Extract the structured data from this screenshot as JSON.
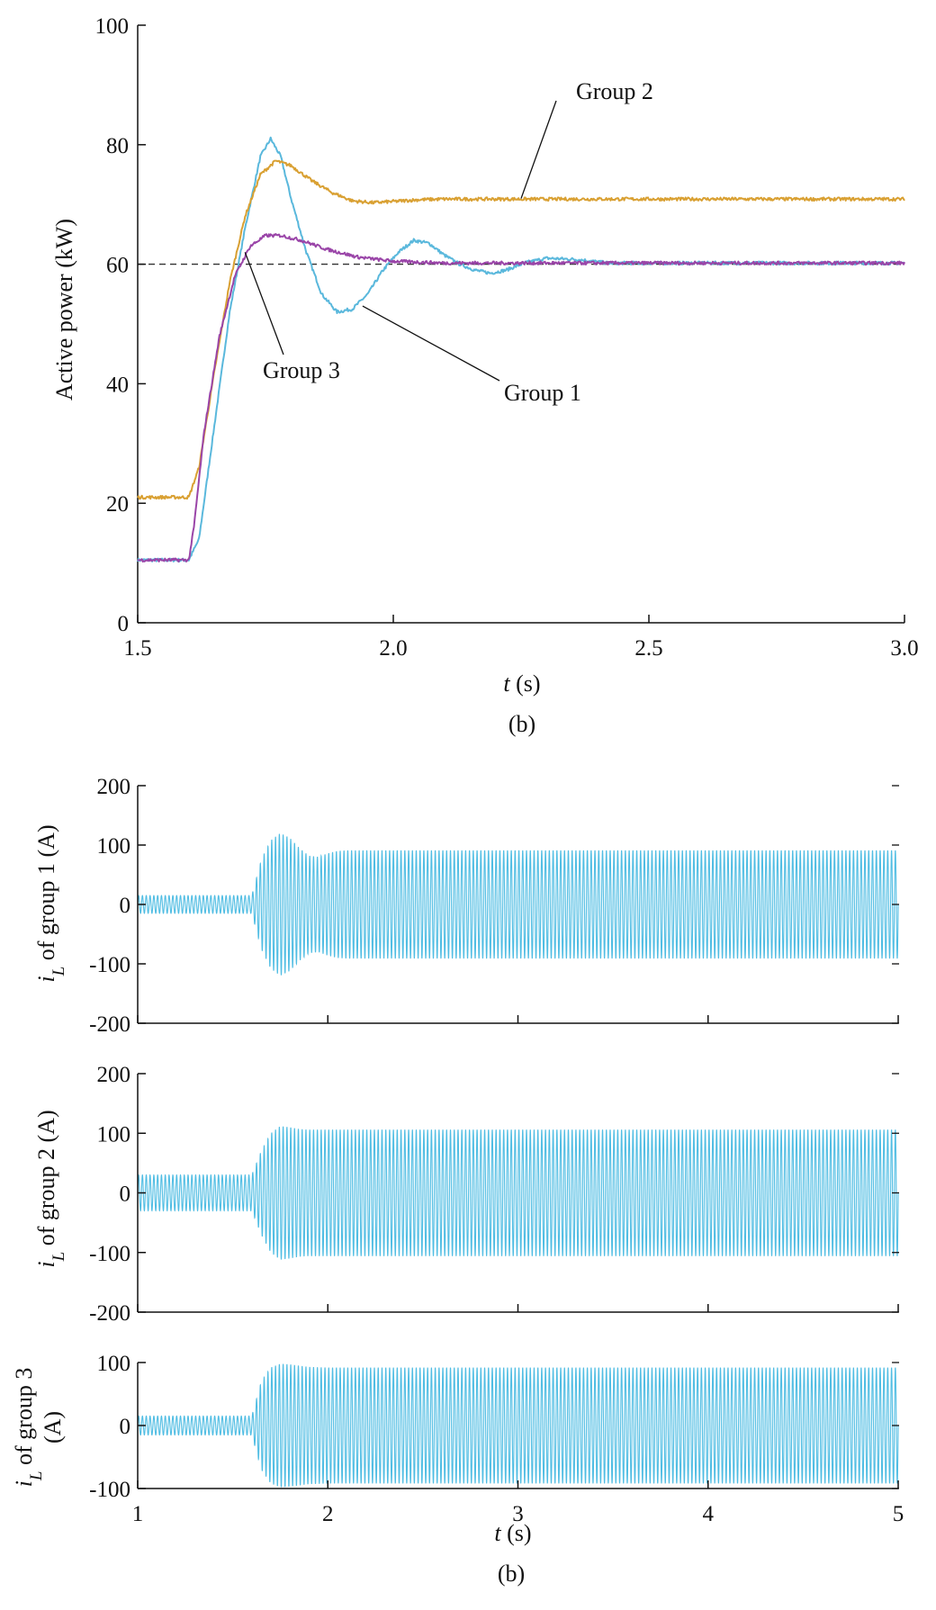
{
  "colors": {
    "group1": "#5ab8dc",
    "group2": "#d9a032",
    "group3": "#9a45a8",
    "current": "#50bde3",
    "axis": "#111111",
    "reference": "#333333"
  },
  "chart_data": [
    {
      "type": "line",
      "title": "",
      "caption": "(b)",
      "xlabel_var": "t",
      "xlabel_unit": " (s)",
      "ylabel": "Active power (kW)",
      "xlim": [
        1.5,
        3.0
      ],
      "ylim": [
        0,
        100
      ],
      "x_ticks": [
        "1.5",
        "2.0",
        "2.5",
        "3.0"
      ],
      "y_ticks": [
        "0",
        "20",
        "40",
        "60",
        "80",
        "100"
      ],
      "reference_line": {
        "y": 60,
        "style": "dashed"
      },
      "series": [
        {
          "name": "Group 1",
          "color_key": "group1",
          "points": [
            [
              1.5,
              10.5
            ],
            [
              1.6,
              10.5
            ],
            [
              1.62,
              14
            ],
            [
              1.65,
              33
            ],
            [
              1.68,
              52
            ],
            [
              1.71,
              66
            ],
            [
              1.74,
              78
            ],
            [
              1.76,
              81
            ],
            [
              1.78,
              78
            ],
            [
              1.8,
              71
            ],
            [
              1.83,
              62
            ],
            [
              1.86,
              55
            ],
            [
              1.89,
              52
            ],
            [
              1.92,
              52.5
            ],
            [
              1.95,
              55
            ],
            [
              1.98,
              59
            ],
            [
              2.01,
              62
            ],
            [
              2.04,
              64
            ],
            [
              2.07,
              63.5
            ],
            [
              2.1,
              61.5
            ],
            [
              2.13,
              60
            ],
            [
              2.16,
              59
            ],
            [
              2.19,
              58.5
            ],
            [
              2.22,
              59
            ],
            [
              2.26,
              60.3
            ],
            [
              2.3,
              61
            ],
            [
              2.36,
              60.8
            ],
            [
              2.42,
              60.2
            ],
            [
              2.5,
              60.2
            ],
            [
              3.0,
              60.2
            ]
          ]
        },
        {
          "name": "Group 2",
          "color_key": "group2",
          "points": [
            [
              1.5,
              21
            ],
            [
              1.6,
              21
            ],
            [
              1.62,
              26
            ],
            [
              1.65,
              42
            ],
            [
              1.68,
              57
            ],
            [
              1.71,
              68
            ],
            [
              1.74,
              75
            ],
            [
              1.77,
              77.3
            ],
            [
              1.8,
              76.5
            ],
            [
              1.84,
              74
            ],
            [
              1.88,
              72
            ],
            [
              1.92,
              70.6
            ],
            [
              1.96,
              70.3
            ],
            [
              2.0,
              70.5
            ],
            [
              2.05,
              70.8
            ],
            [
              2.1,
              70.9
            ],
            [
              2.2,
              70.9
            ],
            [
              3.0,
              70.9
            ]
          ]
        },
        {
          "name": "Group 3",
          "color_key": "group3",
          "points": [
            [
              1.5,
              10.5
            ],
            [
              1.6,
              10.5
            ],
            [
              1.61,
              16
            ],
            [
              1.63,
              32
            ],
            [
              1.66,
              48
            ],
            [
              1.69,
              58
            ],
            [
              1.72,
              63
            ],
            [
              1.75,
              64.8
            ],
            [
              1.78,
              64.8
            ],
            [
              1.82,
              64
            ],
            [
              1.87,
              62.5
            ],
            [
              1.93,
              61.2
            ],
            [
              2.0,
              60.5
            ],
            [
              2.1,
              60.2
            ],
            [
              3.0,
              60.2
            ]
          ]
        }
      ],
      "annotations": [
        {
          "text": "Group 2",
          "target": "group2"
        },
        {
          "text": "Group 1",
          "target": "group1"
        },
        {
          "text": "Group 3",
          "target": "group3"
        }
      ]
    },
    {
      "type": "line",
      "title": "",
      "caption": "(b)",
      "xlabel_var": "t",
      "xlabel_unit": " (s)",
      "xlim": [
        1,
        5
      ],
      "x_ticks": [
        "1",
        "2",
        "3",
        "4",
        "5"
      ],
      "frequency_hz": 50,
      "step_time": 1.6,
      "panels": [
        {
          "name": "Group 1",
          "ylabel_var": "i",
          "ylabel_sub": "L",
          "ylabel_rest": " of group 1 (A)",
          "ylim": [
            -200,
            200
          ],
          "y_ticks": [
            "200",
            "100",
            "0",
            "-100",
            "-200"
          ],
          "envelope": {
            "t": [
              1.0,
              1.6,
              1.65,
              1.7,
              1.75,
              1.8,
              1.85,
              1.9,
              1.95,
              2.0,
              2.05,
              2.1,
              2.2,
              5.0
            ],
            "amp": [
              15,
              15,
              75,
              108,
              120,
              112,
              95,
              82,
              80,
              86,
              90,
              91,
              91,
              91
            ]
          }
        },
        {
          "name": "Group 2",
          "ylabel_var": "i",
          "ylabel_sub": "L",
          "ylabel_rest": " of group 2 (A)",
          "ylim": [
            -200,
            200
          ],
          "y_ticks": [
            "200",
            "100",
            "0",
            "-100",
            "-200"
          ],
          "envelope": {
            "t": [
              1.0,
              1.6,
              1.65,
              1.7,
              1.75,
              1.8,
              1.85,
              1.9,
              2.0,
              5.0
            ],
            "amp": [
              30,
              30,
              70,
              100,
              112,
              110,
              107,
              106,
              106,
              106
            ]
          }
        },
        {
          "name": "Group 3",
          "ylabel_var": "i",
          "ylabel_sub": "L",
          "ylabel_rest": " of group 3",
          "ylabel_line2": "(A)",
          "ylim": [
            -100,
            100
          ],
          "y_ticks": [
            "100",
            "0",
            "-100"
          ],
          "envelope": {
            "t": [
              1.0,
              1.6,
              1.65,
              1.7,
              1.75,
              1.8,
              1.9,
              2.0,
              5.0
            ],
            "amp": [
              15,
              15,
              70,
              92,
              98,
              97,
              93,
              92,
              92
            ]
          }
        }
      ]
    }
  ]
}
